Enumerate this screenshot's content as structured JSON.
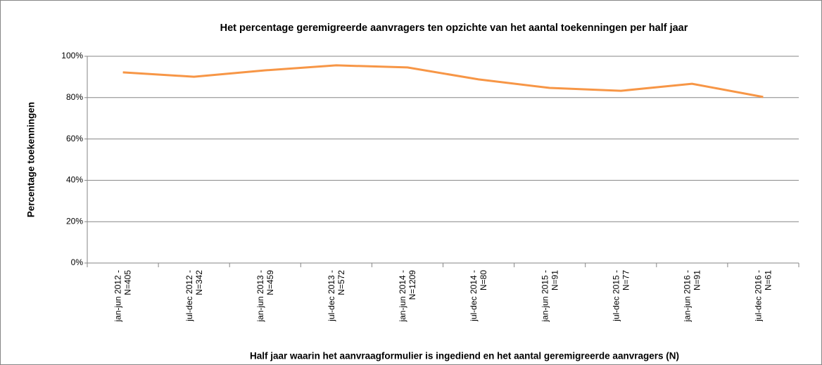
{
  "chart_data": {
    "type": "line",
    "title": "Het percentage geremigreerde aanvragers ten opzichte van het aantal toekenningen per half jaar",
    "xlabel": "Half jaar waarin het aanvraagformulier is ingediend en het aantal geremigreerde aanvragers (N)",
    "ylabel": "Percentage toekenningen",
    "categories": [
      [
        "jan-jun 2012 -",
        "N=405"
      ],
      [
        "jul-dec 2012 -",
        "N=342"
      ],
      [
        "jan-jun 2013 -",
        "N=459"
      ],
      [
        "jul-dec 2013 -",
        "N=572"
      ],
      [
        "jan-jun 2014 -",
        "N=1209"
      ],
      [
        "jul-dec 2014 -",
        "N=80"
      ],
      [
        "jan-jun 2015 -",
        "N=91"
      ],
      [
        "jul-dec 2015 -",
        "N=77"
      ],
      [
        "jan-jun 2016 -",
        "N=91"
      ],
      [
        "jul-dec 2016 -",
        "N=61"
      ]
    ],
    "values": [
      92.2,
      90.1,
      93.2,
      95.6,
      94.6,
      88.8,
      84.7,
      83.3,
      86.7,
      80.3
    ],
    "color": "#f79646",
    "ylim": [
      0,
      100
    ],
    "yticks": [
      {
        "value": 0,
        "label": "0%"
      },
      {
        "value": 20,
        "label": "20%"
      },
      {
        "value": 40,
        "label": "40%"
      },
      {
        "value": 60,
        "label": "60%"
      },
      {
        "value": 80,
        "label": "80%"
      },
      {
        "value": 100,
        "label": "100%"
      }
    ],
    "grid": true
  }
}
